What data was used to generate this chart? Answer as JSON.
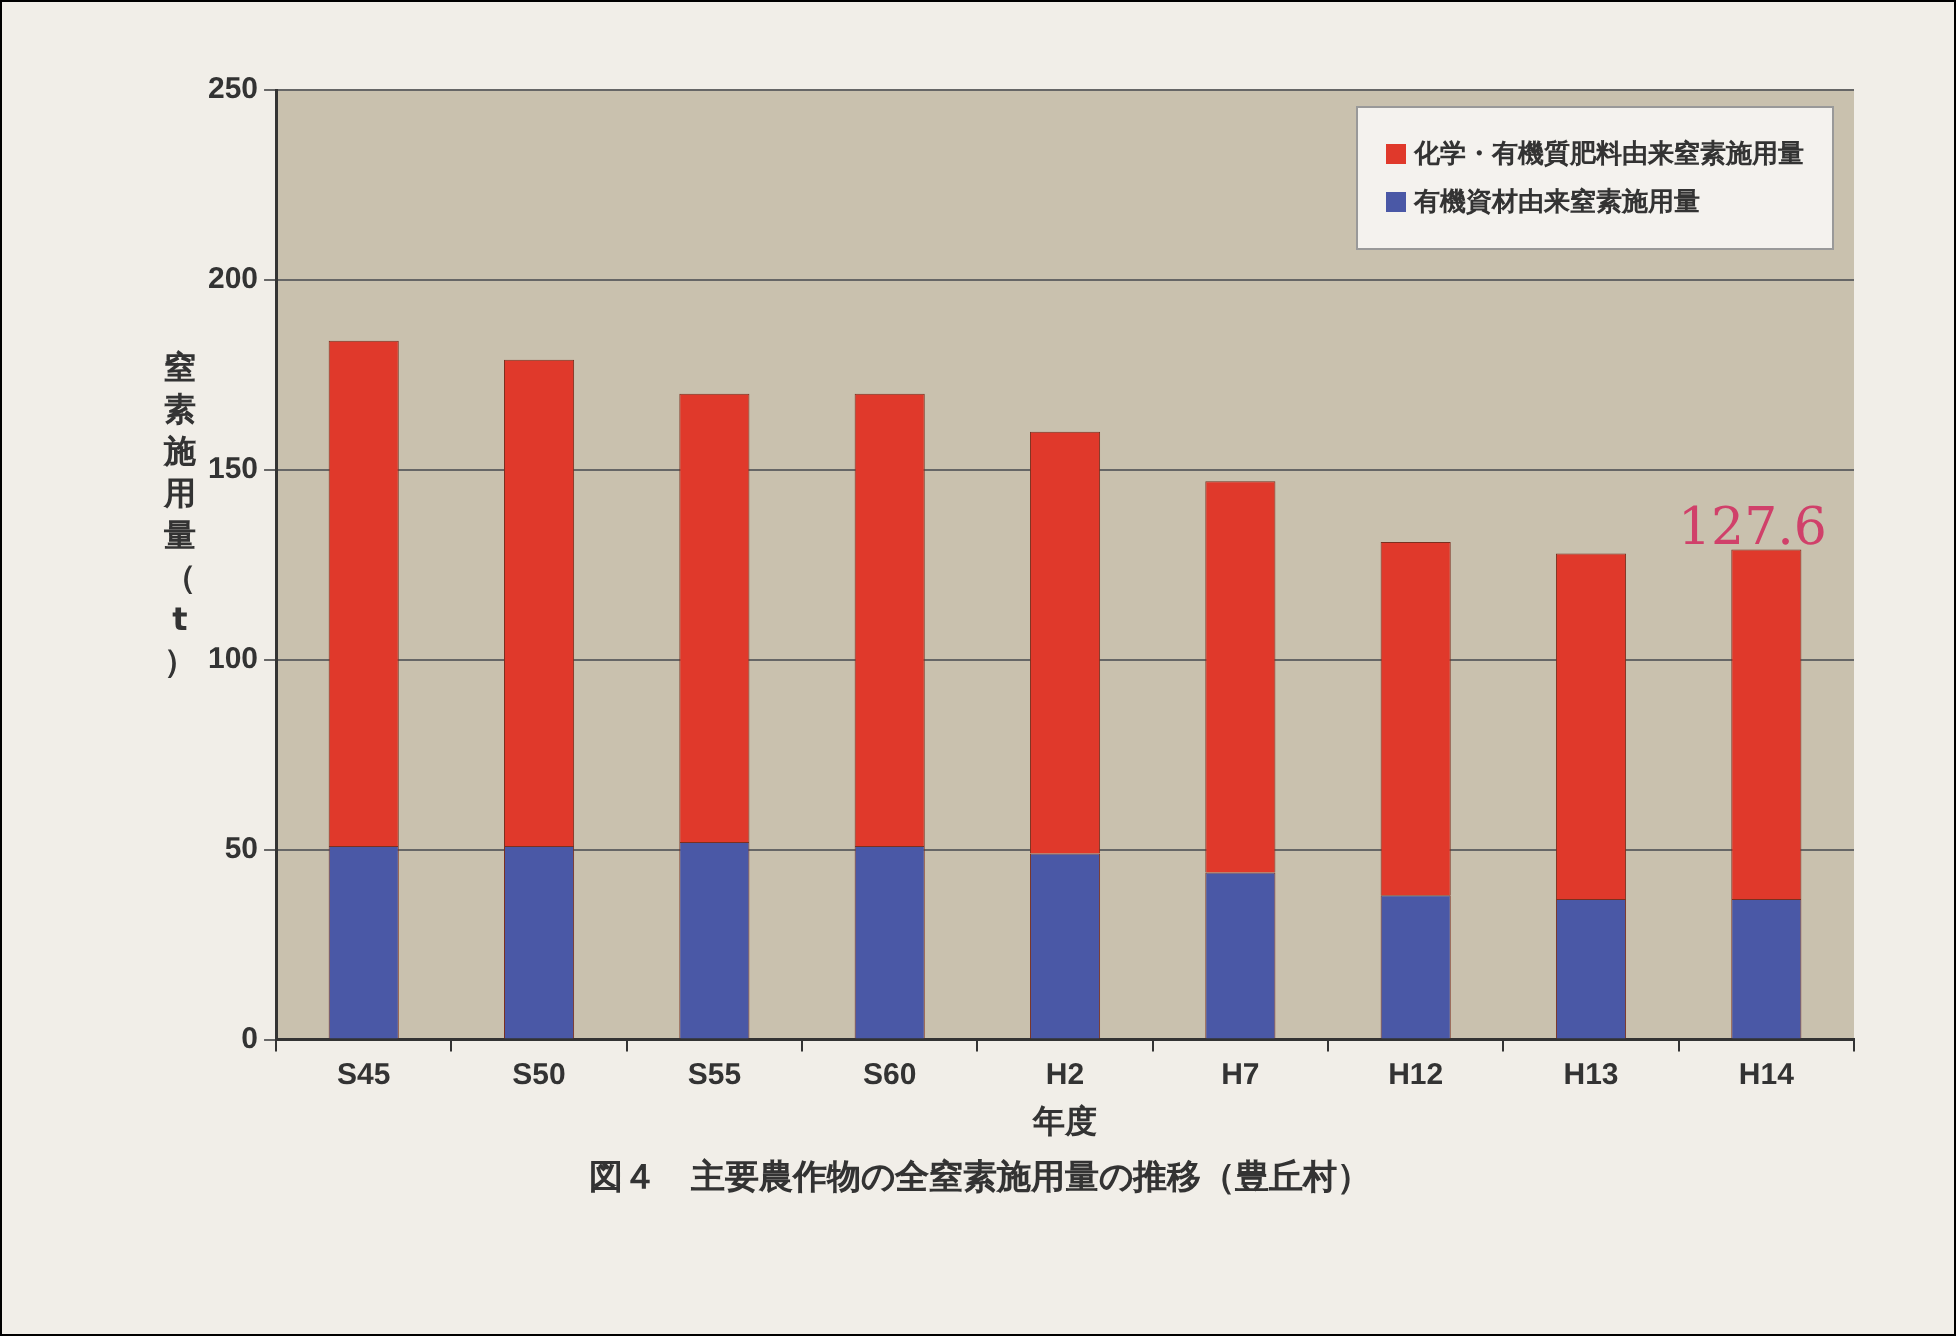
{
  "chart_data": {
    "type": "bar",
    "title": "図４　主要農作物の全窒素施用量の推移（豊丘村）",
    "xlabel": "年度",
    "ylabel": "窒素施用量（t）",
    "categories": [
      "S45",
      "S50",
      "S55",
      "S60",
      "H2",
      "H7",
      "H12",
      "H13",
      "H14"
    ],
    "stacked": true,
    "series": [
      {
        "name": "有機資材由来窒素施用量",
        "color": "#4a58a6",
        "values": [
          51,
          51,
          52,
          51,
          49,
          44,
          38,
          37,
          37
        ]
      },
      {
        "name": "化学・有機質肥料由来窒素施用量",
        "color": "#e0392b",
        "values": [
          133,
          128,
          118,
          119,
          111,
          103,
          93,
          91,
          92
        ]
      }
    ],
    "ylim": [
      0,
      250
    ],
    "yticks": [
      0,
      50,
      100,
      150,
      200,
      250
    ],
    "grid": "y",
    "legend": "top right",
    "annotations": [
      "127.6"
    ]
  }
}
